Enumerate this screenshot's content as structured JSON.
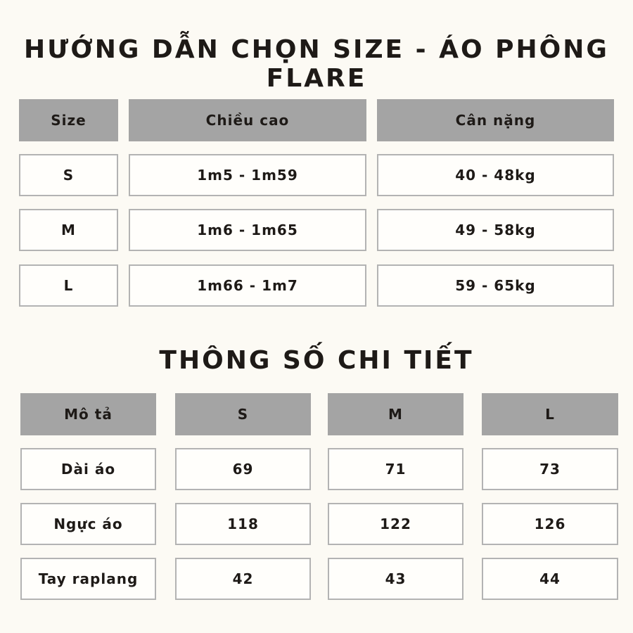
{
  "header": {
    "title": "HƯỚNG DẪN CHỌN SIZE - ÁO PHÔNG FLARE"
  },
  "size_table": {
    "columns": [
      "Size",
      "Chiều cao",
      "Cân nặng"
    ],
    "rows": [
      [
        "S",
        "1m5 - 1m59",
        "40 - 48kg"
      ],
      [
        "M",
        "1m6 - 1m65",
        "49 - 58kg"
      ],
      [
        "L",
        "1m66 - 1m7",
        "59 - 65kg"
      ]
    ]
  },
  "detail_title": "THÔNG SỐ CHI TIẾT",
  "detail_table": {
    "columns": [
      "Mô tả",
      "S",
      "M",
      "L"
    ],
    "rows": [
      [
        "Dài áo",
        69,
        71,
        73
      ],
      [
        "Ngực áo",
        118,
        122,
        126
      ],
      [
        "Tay raplang",
        42,
        43,
        44
      ]
    ]
  }
}
